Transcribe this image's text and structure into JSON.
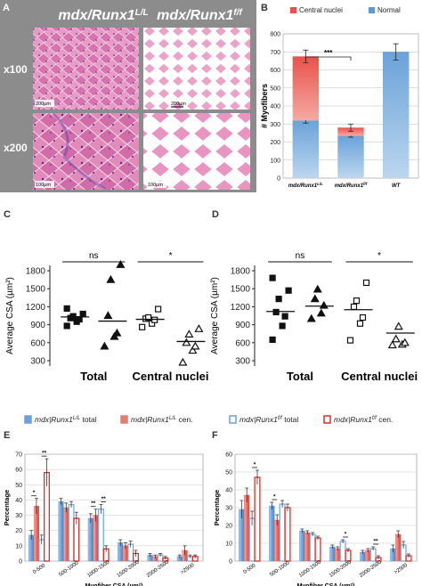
{
  "panels": {
    "A": {
      "letter": "A",
      "col_headers": [
        "mdx/Runx1",
        "mdx/Runx1"
      ],
      "col_superscripts": [
        "L/L",
        "f/f"
      ],
      "row_labels": [
        "x100",
        "x200"
      ],
      "scale_bars": [
        "200µm",
        "200µm",
        "100µm",
        "100µm"
      ]
    },
    "C": {
      "letter": "C"
    },
    "D": {
      "letter": "D"
    },
    "E": {
      "letter": "E"
    },
    "F": {
      "letter": "F"
    }
  },
  "legend_items": [
    {
      "genotype": "mdx|Runx1",
      "sup": "L/L",
      "suffix": " total",
      "fill": "#6d9fd8",
      "stroke": "#6d9fd8"
    },
    {
      "genotype": "mdx|Runx1",
      "sup": "L/L",
      "suffix": " cen.",
      "fill": "#e57c73",
      "stroke": "#e57c73"
    },
    {
      "genotype": "mdx|Runx1",
      "sup": "f/f",
      "suffix": " total",
      "fill": "#ffffff",
      "stroke": "#6d9fd8"
    },
    {
      "genotype": "mdx|Runx1",
      "sup": "f/f",
      "suffix": " cen.",
      "fill": "#ffffff",
      "stroke": "#d9302a"
    }
  ],
  "chart_data": [
    {
      "panel": "B",
      "type": "bar",
      "stacked": true,
      "ylabel": "# Myofibers",
      "ylim": [
        0,
        800
      ],
      "yticks": [
        0,
        100,
        200,
        300,
        400,
        500,
        600,
        700,
        800
      ],
      "categories": [
        "mdx/Runx1",
        "mdx/Runx1",
        "WT"
      ],
      "category_superscripts": [
        "L/L",
        "f/f",
        ""
      ],
      "series": [
        {
          "name": "Normal",
          "values": [
            320,
            235,
            700
          ],
          "errors": [
            15,
            8,
            45
          ],
          "color": "#5b9bd5"
        },
        {
          "name": "Central nuclei",
          "values": [
            355,
            45,
            0
          ],
          "errors": [
            35,
            20,
            0
          ],
          "color": "#e8524a"
        }
      ],
      "significance": [
        {
          "label": "***",
          "between": [
            0,
            1
          ]
        }
      ]
    },
    {
      "panel": "C",
      "type": "scatter",
      "ylabel": "Average  CSA  (µm²)",
      "ylim": [
        300,
        1800
      ],
      "yticks": [
        300,
        600,
        900,
        1200,
        1500,
        1800
      ],
      "groups": [
        "Total",
        "Central nuclei"
      ],
      "significance": [
        {
          "label": "ns",
          "group": 0
        },
        {
          "label": "*",
          "group": 1
        }
      ],
      "series": [
        {
          "marker": "square",
          "filled": true,
          "values": [
            880,
            950,
            990,
            1010,
            1040,
            1080,
            1170
          ],
          "mean": 1030
        },
        {
          "marker": "triangle",
          "filled": true,
          "values": [
            540,
            700,
            760,
            1050,
            1650,
            1900
          ],
          "mean": 960
        },
        {
          "marker": "square",
          "filled": false,
          "values": [
            860,
            920,
            980,
            1000,
            1020,
            1160
          ],
          "mean": 990
        },
        {
          "marker": "triangle",
          "filled": false,
          "values": [
            270,
            470,
            540,
            600,
            740,
            830
          ],
          "mean": 620
        }
      ]
    },
    {
      "panel": "D",
      "type": "scatter",
      "ylabel": "Average  CSA  (µm²)",
      "ylim": [
        300,
        1800
      ],
      "yticks": [
        300,
        600,
        900,
        1200,
        1500,
        1800
      ],
      "groups": [
        "Total",
        "Central nuclei"
      ],
      "significance": [
        {
          "label": "ns",
          "group": 0
        },
        {
          "label": "*",
          "group": 1
        }
      ],
      "series": [
        {
          "marker": "square",
          "filled": true,
          "values": [
            650,
            880,
            1040,
            1110,
            1330,
            1470,
            1680
          ],
          "mean": 1120
        },
        {
          "marker": "triangle",
          "filled": true,
          "values": [
            1000,
            1090,
            1220,
            1330,
            1490
          ],
          "mean": 1210
        },
        {
          "marker": "square",
          "filled": false,
          "values": [
            640,
            920,
            1020,
            1200,
            1300,
            1600
          ],
          "mean": 1150
        },
        {
          "marker": "triangle",
          "filled": false,
          "values": [
            560,
            570,
            600,
            660,
            870
          ],
          "mean": 760
        }
      ]
    },
    {
      "panel": "E",
      "type": "bar",
      "xlabel": "Myofiber CSA (µm²)",
      "ylabel": "Percentage",
      "ylim": [
        0,
        70
      ],
      "yticks": [
        0,
        10,
        20,
        30,
        40,
        50,
        60,
        70
      ],
      "categories": [
        "0-500",
        "500-1000",
        "1000-1500",
        "1500-2000",
        "2000-2500",
        ">2500"
      ],
      "series": [
        {
          "values": [
            17,
            39,
            28,
            12,
            4,
            3
          ],
          "errors": [
            3,
            2,
            3,
            2,
            1,
            1
          ]
        },
        {
          "values": [
            36,
            35,
            30,
            10,
            3,
            7
          ],
          "errors": [
            5,
            3,
            4,
            2,
            1,
            3
          ]
        },
        {
          "values": [
            14,
            37,
            34,
            11,
            4,
            3
          ],
          "errors": [
            3,
            2,
            3,
            2,
            1,
            1
          ]
        },
        {
          "values": [
            58,
            28,
            8,
            5,
            2,
            3
          ],
          "errors": [
            9,
            4,
            2,
            2,
            1,
            1
          ]
        }
      ],
      "significance": [
        {
          "label": "*",
          "category": 0,
          "span": [
            0,
            1
          ]
        },
        {
          "label": "**",
          "category": 0,
          "span": [
            2,
            3
          ]
        },
        {
          "label": "**",
          "category": 2,
          "span": [
            0,
            1
          ]
        },
        {
          "label": "**",
          "category": 2,
          "span": [
            2,
            3
          ]
        }
      ]
    },
    {
      "panel": "F",
      "type": "bar",
      "xlabel": "Myofiber CSA (µm²)",
      "ylabel": "Percentage",
      "ylim": [
        0,
        60
      ],
      "yticks": [
        0,
        10,
        20,
        30,
        40,
        50,
        60
      ],
      "categories": [
        "0-500",
        "500-1000",
        "1000-1500",
        "1500-2000",
        "2000-2500",
        ">2500"
      ],
      "series": [
        {
          "values": [
            29,
            31,
            17,
            8,
            5,
            7
          ],
          "errors": [
            5,
            2,
            1,
            1,
            1,
            2
          ]
        },
        {
          "values": [
            37,
            23,
            16,
            7,
            6,
            15
          ],
          "errors": [
            4,
            3,
            1,
            1,
            1,
            2
          ]
        },
        {
          "values": [
            24,
            32,
            15,
            11,
            7,
            9
          ],
          "errors": [
            4,
            2,
            1,
            1,
            1,
            2
          ]
        },
        {
          "values": [
            47,
            30,
            13,
            6,
            2,
            3
          ],
          "errors": [
            4,
            2,
            1,
            1,
            1,
            1
          ]
        }
      ],
      "significance": [
        {
          "label": "*",
          "category": 0,
          "span": [
            2,
            3
          ]
        },
        {
          "label": "*",
          "category": 1,
          "span": [
            0,
            1
          ]
        },
        {
          "label": "*",
          "category": 3,
          "span": [
            2,
            3
          ]
        },
        {
          "label": "**",
          "category": 4,
          "span": [
            2,
            3
          ]
        }
      ]
    }
  ]
}
